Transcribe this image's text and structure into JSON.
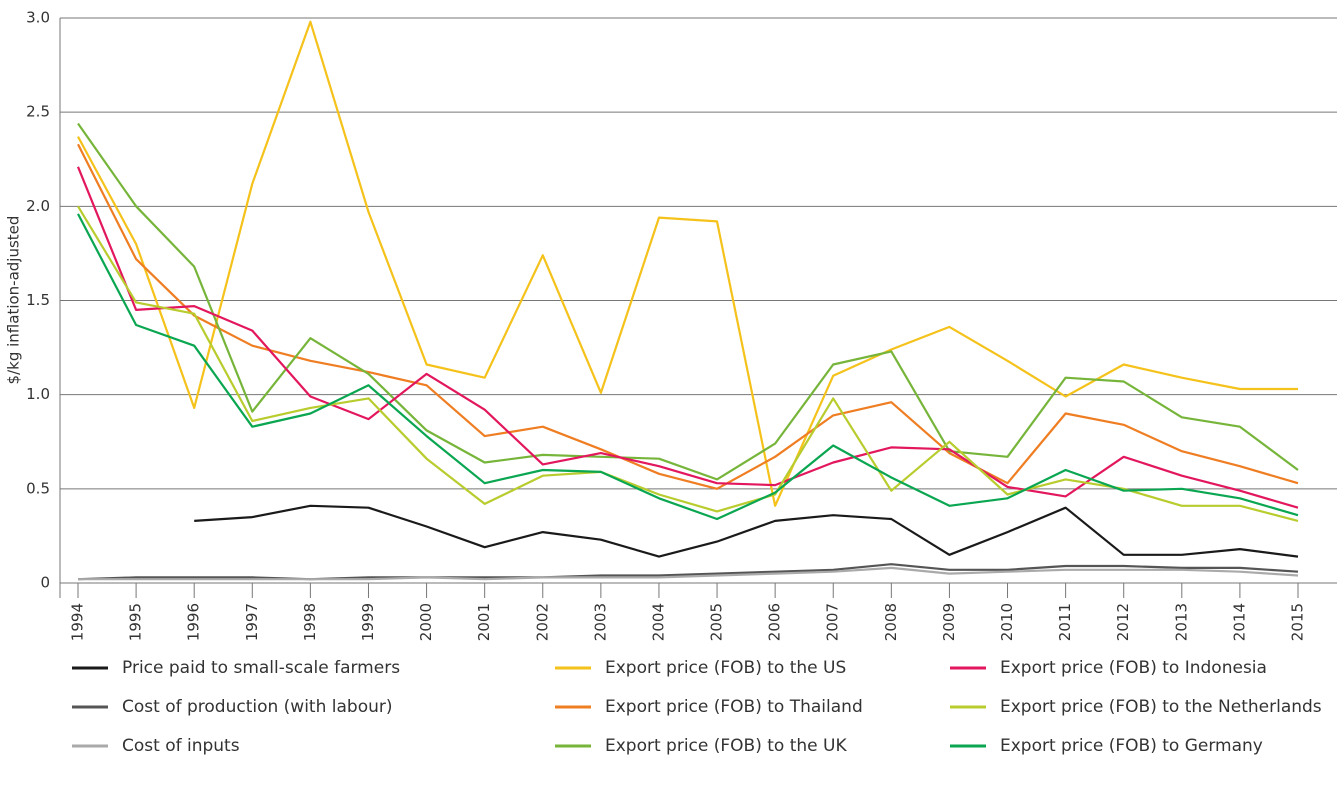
{
  "chart_data": {
    "type": "line",
    "y_axis_label": "$/kg inflation-adjusted",
    "categories": [
      "1994",
      "1995",
      "1996",
      "1997",
      "1998",
      "1999",
      "2000",
      "2001",
      "2002",
      "2003",
      "2004",
      "2005",
      "2006",
      "2007",
      "2008",
      "2009",
      "2010",
      "2011",
      "2012",
      "2013",
      "2014",
      "2015"
    ],
    "ylim": [
      0,
      3
    ],
    "yticks": [
      0,
      0.5,
      {
        "value": 1,
        "label": "1.0"
      },
      1.5,
      {
        "value": 2,
        "label": "2.0"
      },
      2.5,
      {
        "value": 3,
        "label": "3.0"
      }
    ],
    "grid": true,
    "series": [
      {
        "name": "Price paid to small-scale farmers",
        "color": "#1a1a1a",
        "values": [
          null,
          null,
          0.33,
          0.35,
          0.41,
          0.4,
          0.3,
          0.19,
          0.27,
          0.23,
          0.14,
          0.22,
          0.33,
          0.36,
          0.34,
          0.15,
          0.27,
          0.4,
          0.15,
          0.15,
          0.18,
          0.14
        ]
      },
      {
        "name": "Cost of production (with labour)",
        "color": "#555555",
        "values": [
          0.02,
          0.03,
          0.03,
          0.03,
          0.02,
          0.03,
          0.03,
          0.03,
          0.03,
          0.04,
          0.04,
          0.05,
          0.06,
          0.07,
          0.1,
          0.07,
          0.07,
          0.09,
          0.09,
          0.08,
          0.08,
          0.06
        ]
      },
      {
        "name": "Cost of inputs",
        "color": "#aaaaaa",
        "values": [
          0.02,
          0.02,
          0.02,
          0.02,
          0.02,
          0.02,
          0.03,
          0.02,
          0.03,
          0.03,
          0.03,
          0.04,
          0.05,
          0.06,
          0.08,
          0.05,
          0.06,
          0.07,
          0.07,
          0.07,
          0.06,
          0.04
        ]
      },
      {
        "name": "Export price (FOB) to the US",
        "color": "#f5c21b",
        "values": [
          2.37,
          1.8,
          0.93,
          2.12,
          2.98,
          1.97,
          1.16,
          1.09,
          1.74,
          1.01,
          1.94,
          1.92,
          0.41,
          1.1,
          1.24,
          1.36,
          1.18,
          0.99,
          1.16,
          1.09,
          1.03,
          1.03
        ]
      },
      {
        "name": "Export price (FOB) to Thailand",
        "color": "#ef7d22",
        "values": [
          2.33,
          1.72,
          1.42,
          1.26,
          1.18,
          1.12,
          1.05,
          0.78,
          0.83,
          0.71,
          0.58,
          0.5,
          0.67,
          0.89,
          0.96,
          0.69,
          0.53,
          0.9,
          0.84,
          0.7,
          0.62,
          0.53
        ]
      },
      {
        "name": "Export price (FOB) to the UK",
        "color": "#76b53a",
        "values": [
          2.44,
          2.0,
          1.68,
          0.91,
          1.3,
          1.11,
          0.81,
          0.64,
          0.68,
          0.67,
          0.66,
          0.55,
          0.74,
          1.16,
          1.23,
          0.7,
          0.67,
          1.09,
          1.07,
          0.88,
          0.83,
          0.6
        ]
      },
      {
        "name": "Export price (FOB) to Indonesia",
        "color": "#e2175d",
        "values": [
          2.21,
          1.45,
          1.47,
          1.34,
          0.99,
          0.87,
          1.11,
          0.92,
          0.63,
          0.69,
          0.62,
          0.53,
          0.52,
          0.64,
          0.72,
          0.71,
          0.51,
          0.46,
          0.67,
          0.57,
          0.49,
          0.4
        ]
      },
      {
        "name": "Export price (FOB) to the Netherlands",
        "color": "#b9cc2e",
        "values": [
          2.0,
          1.49,
          1.43,
          0.86,
          0.93,
          0.98,
          0.66,
          0.42,
          0.57,
          0.59,
          0.47,
          0.38,
          0.47,
          0.98,
          0.49,
          0.75,
          0.47,
          0.55,
          0.5,
          0.41,
          0.41,
          0.33
        ]
      },
      {
        "name": "Export price (FOB) to Germany",
        "color": "#0aa651",
        "values": [
          1.96,
          1.37,
          1.26,
          0.83,
          0.9,
          1.05,
          0.78,
          0.53,
          0.6,
          0.59,
          0.45,
          0.34,
          0.48,
          0.73,
          0.56,
          0.41,
          0.45,
          0.6,
          0.49,
          0.5,
          0.45,
          0.36
        ]
      }
    ]
  }
}
